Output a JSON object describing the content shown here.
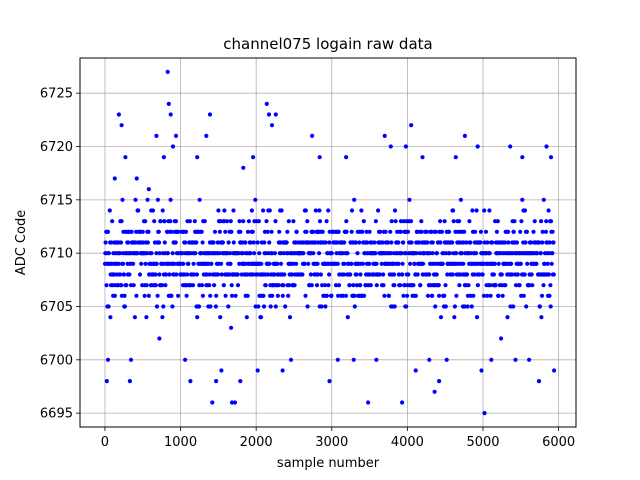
{
  "chart_data": {
    "type": "scatter",
    "title": "channel075 logain raw data",
    "xlabel": "sample number",
    "ylabel": "ADC Code",
    "xlim": [
      -330,
      6230
    ],
    "ylim": [
      6693.7,
      6728.3
    ],
    "xticks": [
      0,
      1000,
      2000,
      3000,
      4000,
      5000,
      6000
    ],
    "yticks": [
      6695,
      6700,
      6705,
      6710,
      6715,
      6720,
      6725
    ],
    "grid": true,
    "marker_color": "#0000ff",
    "series": [
      {
        "sample_count": 5940,
        "baseline": 6709.5,
        "band_low": 6703,
        "band_high": 6715,
        "outliers": [
          [
            25,
            6698
          ],
          [
            40,
            6700
          ],
          [
            130,
            6717
          ],
          [
            185,
            6723
          ],
          [
            220,
            6722
          ],
          [
            270,
            6719
          ],
          [
            330,
            6698
          ],
          [
            345,
            6700
          ],
          [
            420,
            6717
          ],
          [
            580,
            6716
          ],
          [
            680,
            6721
          ],
          [
            720,
            6702
          ],
          [
            780,
            6719
          ],
          [
            830,
            6727
          ],
          [
            845,
            6724
          ],
          [
            870,
            6723
          ],
          [
            900,
            6720
          ],
          [
            940,
            6721
          ],
          [
            1060,
            6700
          ],
          [
            1130,
            6698
          ],
          [
            1220,
            6719
          ],
          [
            1340,
            6721
          ],
          [
            1390,
            6723
          ],
          [
            1420,
            6696
          ],
          [
            1470,
            6698
          ],
          [
            1540,
            6699
          ],
          [
            1680,
            6696
          ],
          [
            1720,
            6696
          ],
          [
            1790,
            6698
          ],
          [
            1830,
            6718
          ],
          [
            1960,
            6719
          ],
          [
            2020,
            6699
          ],
          [
            2140,
            6724
          ],
          [
            2170,
            6723
          ],
          [
            2210,
            6722
          ],
          [
            2260,
            6723
          ],
          [
            2350,
            6699
          ],
          [
            2460,
            6700
          ],
          [
            2740,
            6721
          ],
          [
            2840,
            6719
          ],
          [
            2970,
            6698
          ],
          [
            3080,
            6700
          ],
          [
            3190,
            6719
          ],
          [
            3290,
            6700
          ],
          [
            3480,
            6696
          ],
          [
            3590,
            6700
          ],
          [
            3700,
            6721
          ],
          [
            3780,
            6720
          ],
          [
            3930,
            6696
          ],
          [
            3980,
            6720
          ],
          [
            4050,
            6722
          ],
          [
            4110,
            6699
          ],
          [
            4200,
            6719
          ],
          [
            4290,
            6700
          ],
          [
            4360,
            6697
          ],
          [
            4420,
            6698
          ],
          [
            4520,
            6700
          ],
          [
            4640,
            6719
          ],
          [
            4760,
            6721
          ],
          [
            4930,
            6720
          ],
          [
            4980,
            6699
          ],
          [
            5020,
            6695
          ],
          [
            5110,
            6700
          ],
          [
            5240,
            6702
          ],
          [
            5360,
            6720
          ],
          [
            5430,
            6700
          ],
          [
            5520,
            6719
          ],
          [
            5610,
            6700
          ],
          [
            5740,
            6698
          ],
          [
            5840,
            6720
          ],
          [
            5900,
            6719
          ],
          [
            5940,
            6699
          ]
        ]
      }
    ]
  }
}
